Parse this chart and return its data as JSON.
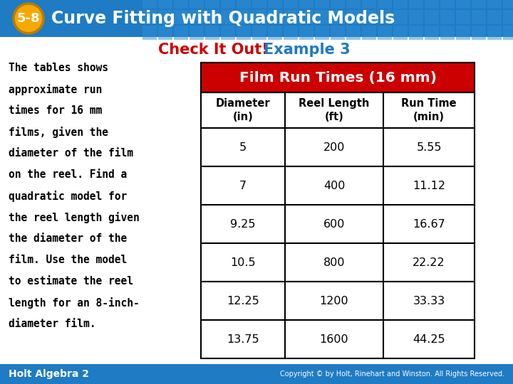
{
  "title_badge": "5-8",
  "title_text": "Curve Fitting with Quadratic Models",
  "header_bg": "#1e7bc4",
  "badge_bg": "#f5a800",
  "badge_border": "#b87d00",
  "check_it_out": "Check It Out!",
  "example": "Example 3",
  "body_bg": "#ffffff",
  "left_text_lines": [
    "The tables shows",
    "approximate run",
    "times for 16 mm",
    "films, given the",
    "diameter of the film",
    "on the reel. Find a",
    "quadratic model for",
    "the reel length given",
    "the diameter of the",
    "film. Use the model",
    "to estimate the reel",
    "length for an 8-inch-",
    "diameter film."
  ],
  "table_title": "Film Run Times (16 mm)",
  "table_title_bg": "#cc0000",
  "col_headers": [
    "Diameter\n(in)",
    "Reel Length\n(ft)",
    "Run Time\n(min)"
  ],
  "table_data": [
    [
      "5",
      "200",
      "5.55"
    ],
    [
      "7",
      "400",
      "11.12"
    ],
    [
      "9.25",
      "600",
      "16.67"
    ],
    [
      "10.5",
      "800",
      "22.22"
    ],
    [
      "12.25",
      "1200",
      "33.33"
    ],
    [
      "13.75",
      "1600",
      "44.25"
    ]
  ],
  "footer_left": "Holt Algebra 2",
  "footer_right": "Copyright © by Holt, Rinehart and Winston. All Rights Reserved.",
  "footer_bg": "#1e7bc4",
  "tile_color": "#2e8fd4",
  "tile_alpha": 0.5
}
